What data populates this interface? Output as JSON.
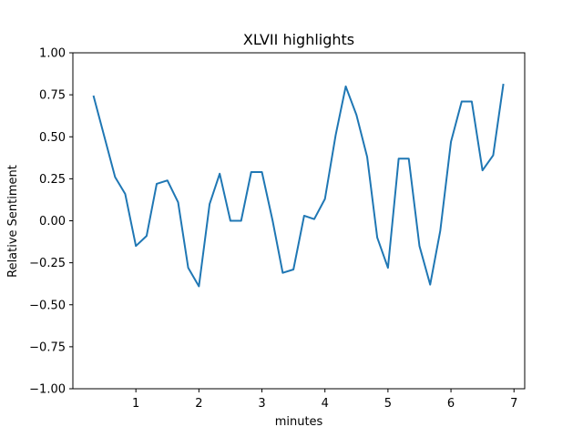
{
  "chart_data": {
    "type": "line",
    "title": "XLVII highlights",
    "xlabel": "minutes",
    "ylabel": "Relative Sentiment",
    "xlim": [
      0.0,
      7.17
    ],
    "ylim": [
      -1.0,
      1.0
    ],
    "xticks": [
      1,
      2,
      3,
      4,
      5,
      6,
      7
    ],
    "yticks": [
      -1.0,
      -0.75,
      -0.5,
      -0.25,
      0.0,
      0.25,
      0.5,
      0.75,
      1.0
    ],
    "ytick_labels": [
      "−1.00",
      "−0.75",
      "−0.50",
      "−0.25",
      "0.00",
      "0.25",
      "0.50",
      "0.75",
      "1.00"
    ],
    "grid": false,
    "series": [
      {
        "color": "#1f77b4",
        "x": [
          0.33,
          0.5,
          0.67,
          0.83,
          1.0,
          1.17,
          1.33,
          1.5,
          1.67,
          1.83,
          2.0,
          2.17,
          2.33,
          2.5,
          2.67,
          2.83,
          3.0,
          3.17,
          3.33,
          3.5,
          3.67,
          3.83,
          4.0,
          4.17,
          4.33,
          4.5,
          4.67,
          4.83,
          5.0,
          5.17,
          5.33,
          5.5,
          5.67,
          5.83,
          6.0,
          6.17,
          6.33,
          6.5,
          6.67,
          6.83
        ],
        "y": [
          0.74,
          0.5,
          0.26,
          0.16,
          -0.15,
          -0.09,
          0.22,
          0.24,
          0.11,
          -0.28,
          -0.39,
          0.1,
          0.28,
          0.0,
          0.0,
          0.29,
          0.29,
          0.0,
          -0.31,
          -0.29,
          0.03,
          0.01,
          0.13,
          0.51,
          0.8,
          0.63,
          0.38,
          -0.1,
          -0.28,
          0.37,
          0.37,
          -0.15,
          -0.38,
          -0.06,
          0.47,
          0.71,
          0.71,
          0.3,
          0.39,
          0.81
        ]
      }
    ]
  }
}
